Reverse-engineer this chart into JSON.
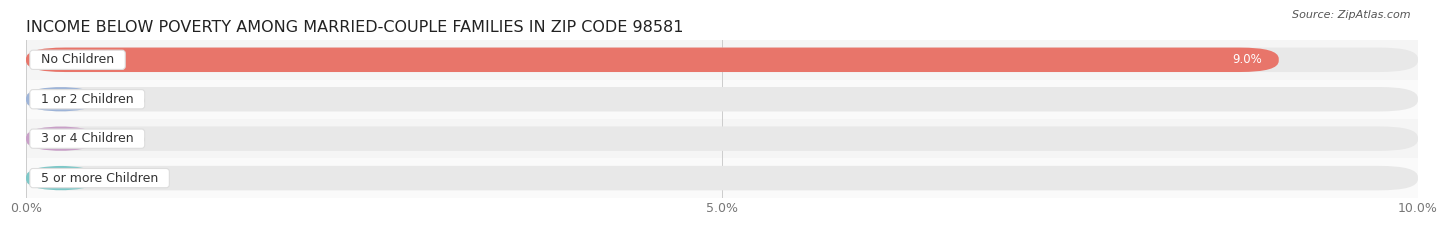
{
  "title": "INCOME BELOW POVERTY AMONG MARRIED-COUPLE FAMILIES IN ZIP CODE 98581",
  "source": "Source: ZipAtlas.com",
  "categories": [
    "No Children",
    "1 or 2 Children",
    "3 or 4 Children",
    "5 or more Children"
  ],
  "values": [
    9.0,
    0.0,
    0.0,
    0.0
  ],
  "bar_colors": [
    "#e8756a",
    "#9eb4d8",
    "#c9a0c8",
    "#7ec8c8"
  ],
  "bar_bg_color": "#e8e8e8",
  "xlim": [
    0,
    10.0
  ],
  "xticks": [
    0.0,
    5.0,
    10.0
  ],
  "xtick_labels": [
    "0.0%",
    "5.0%",
    "10.0%"
  ],
  "background_color": "#ffffff",
  "title_fontsize": 11.5,
  "label_fontsize": 9,
  "value_fontsize": 8.5,
  "bar_height": 0.62,
  "row_bg_colors": [
    "#f5f5f5",
    "#fafafa"
  ]
}
